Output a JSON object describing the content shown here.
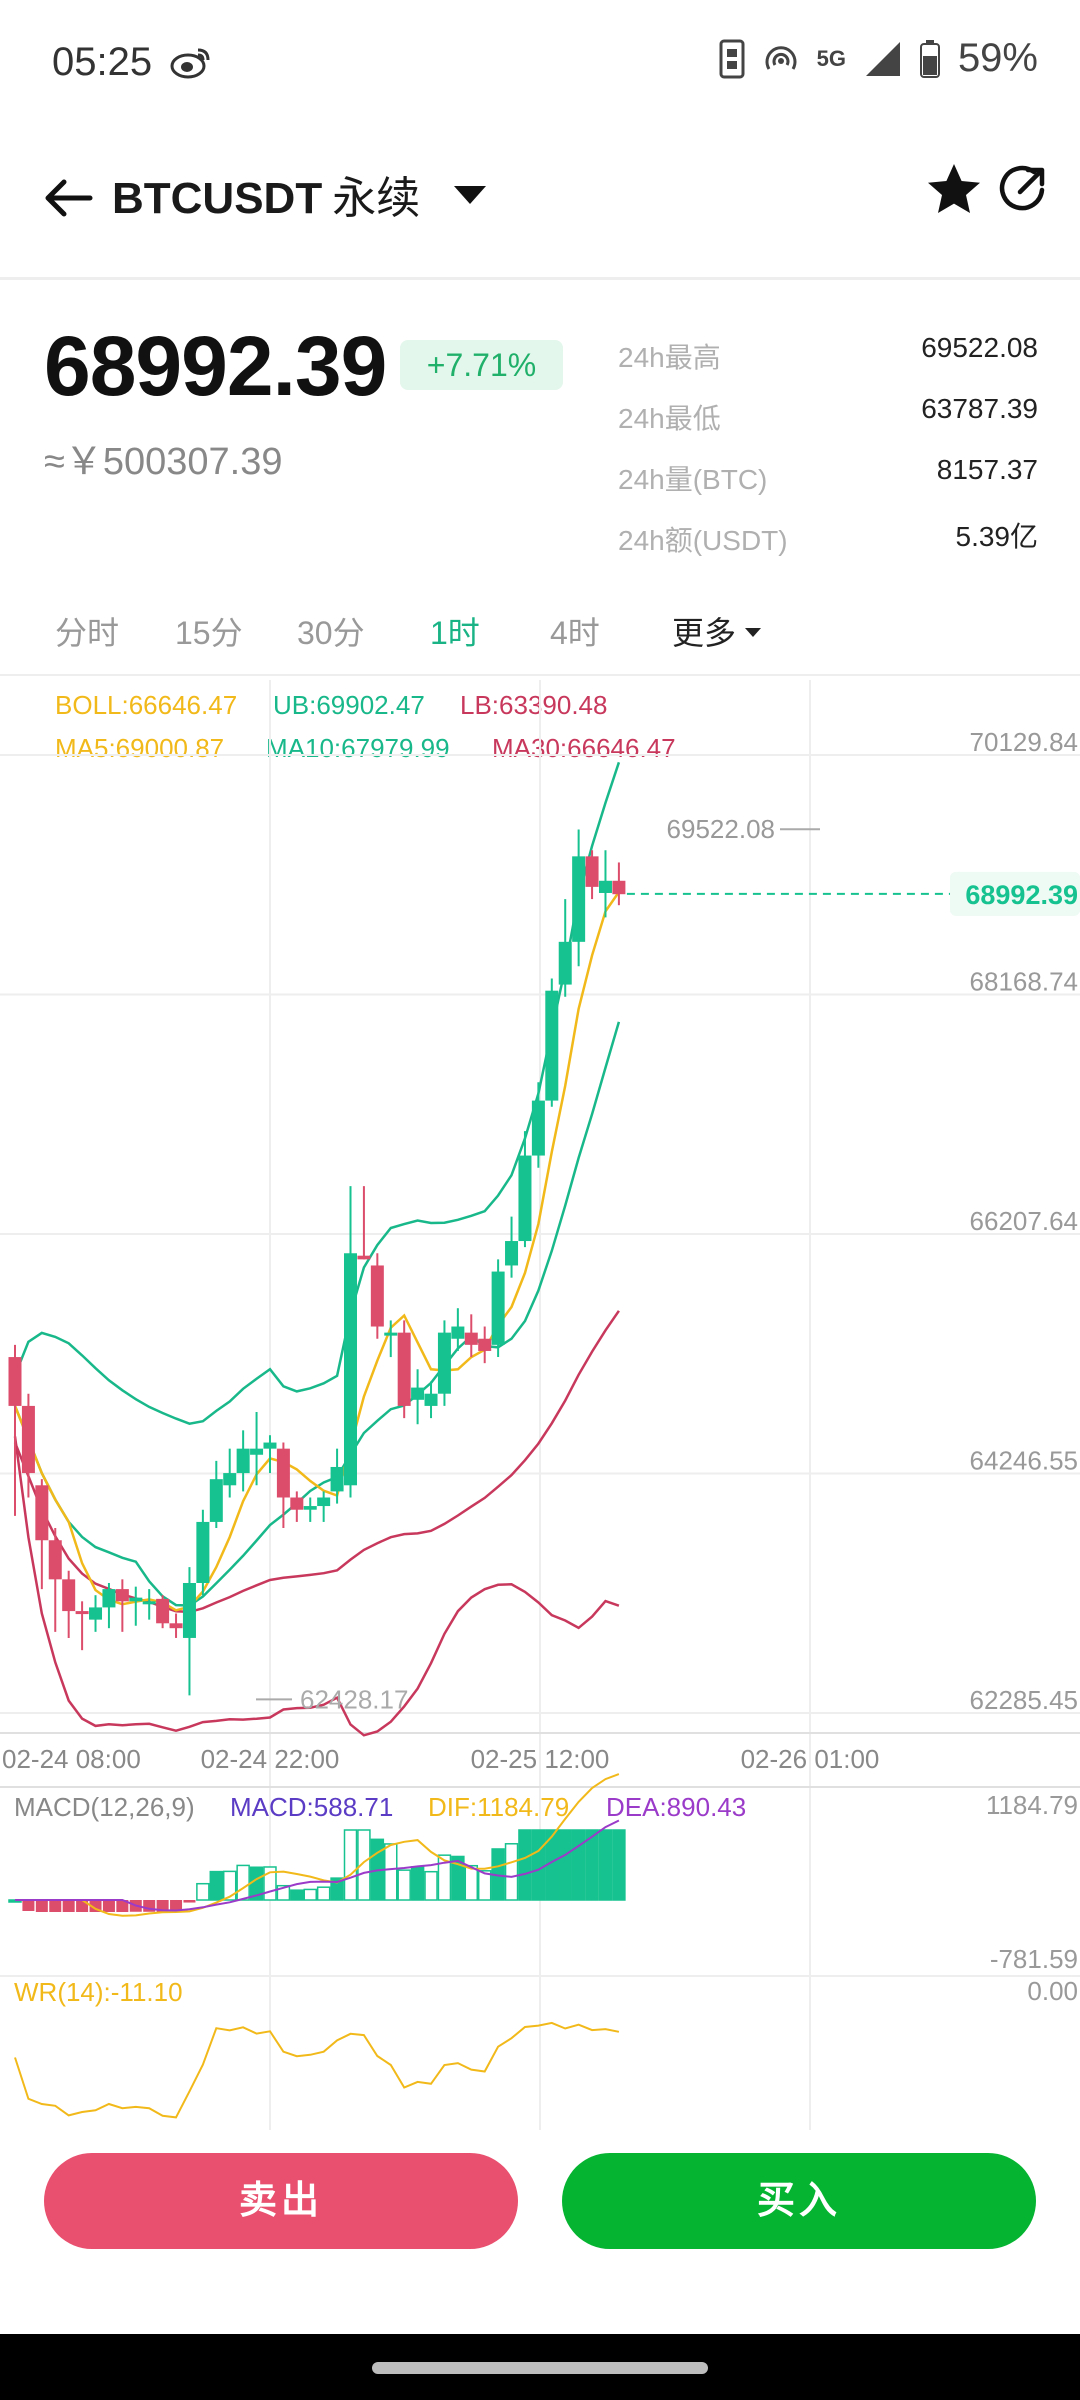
{
  "status_bar": {
    "time": "05:25",
    "network": "5G",
    "battery": "59%"
  },
  "header": {
    "pair": "BTCUSDT",
    "contract_type": "永续"
  },
  "ticker": {
    "last_price": "68992.39",
    "change_pct": "+7.71%",
    "cny_price": "≈￥500307.39",
    "stats": [
      {
        "label": "24h最高",
        "value": "69522.08"
      },
      {
        "label": "24h最低",
        "value": "63787.39"
      },
      {
        "label": "24h量(BTC)",
        "value": "8157.37"
      },
      {
        "label": "24h额(USDT)",
        "value": "5.39亿"
      }
    ]
  },
  "intervals": {
    "tabs": [
      "分时",
      "15分",
      "30分",
      "1时",
      "4时"
    ],
    "active": "1时",
    "more": "更多"
  },
  "indicators": {
    "boll": "BOLL:66646.47",
    "ub": "UB:69902.47",
    "lb": "LB:63390.48",
    "ma5": "MA5:69000.87",
    "ma10": "MA10:67979.99",
    "ma30": "MA30:66646.47",
    "macd_title": "MACD(12,26,9)",
    "macd": "MACD:588.71",
    "dif": "DIF:1184.79",
    "dea": "DEA:890.43",
    "wr": "WR(14):-11.10"
  },
  "chart_labels": {
    "y_ticks": [
      "70129.84",
      "68168.74",
      "66207.64",
      "64246.55",
      "62285.45"
    ],
    "high_marker": "69522.08",
    "low_marker": "62428.17",
    "current": "68992.39",
    "x_ticks": [
      "02-24 08:00",
      "02-24 22:00",
      "02-25 12:00",
      "02-26 01:00"
    ],
    "macd_max": "1184.79",
    "macd_min": "-781.59",
    "wr_max": "0.00"
  },
  "colors": {
    "up": "#16c28f",
    "down": "#dc4d6c",
    "ma5": "#f2b91a",
    "boll_band": "#19b88a",
    "ma30": "#c8385d",
    "dea": "#9b3bc9",
    "macd_title": "#5b3cc4"
  },
  "buttons": {
    "sell": "卖出",
    "buy": "买入"
  },
  "chart_data": {
    "type": "candlestick",
    "y_axis": {
      "min": 62285.45,
      "max": 70129.84
    },
    "candles": [
      {
        "o": 65200,
        "c": 64800,
        "h": 65300,
        "l": 63900
      },
      {
        "o": 64800,
        "c": 64250,
        "h": 64900,
        "l": 64050
      },
      {
        "o": 64150,
        "c": 63700,
        "h": 64200,
        "l": 63300
      },
      {
        "o": 63700,
        "c": 63380,
        "h": 63800,
        "l": 62950
      },
      {
        "o": 63380,
        "c": 63120,
        "h": 63450,
        "l": 62900
      },
      {
        "o": 63120,
        "c": 63110,
        "h": 63200,
        "l": 62800
      },
      {
        "o": 63050,
        "c": 63150,
        "h": 63250,
        "l": 62950
      },
      {
        "o": 63150,
        "c": 63300,
        "h": 63350,
        "l": 62980
      },
      {
        "o": 63300,
        "c": 63200,
        "h": 63380,
        "l": 62950
      },
      {
        "o": 63200,
        "c": 63230,
        "h": 63320,
        "l": 63000
      },
      {
        "o": 63180,
        "c": 63200,
        "h": 63300,
        "l": 63050
      },
      {
        "o": 63220,
        "c": 63020,
        "h": 63250,
        "l": 62980
      },
      {
        "o": 63020,
        "c": 62980,
        "h": 63100,
        "l": 62900
      },
      {
        "o": 62900,
        "c": 63350,
        "h": 63480,
        "l": 62430
      },
      {
        "o": 63350,
        "c": 63850,
        "h": 63950,
        "l": 63250
      },
      {
        "o": 63850,
        "c": 64200,
        "h": 64350,
        "l": 63800
      },
      {
        "o": 64150,
        "c": 64250,
        "h": 64450,
        "l": 64050
      },
      {
        "o": 64250,
        "c": 64450,
        "h": 64600,
        "l": 64100
      },
      {
        "o": 64400,
        "c": 64450,
        "h": 64750,
        "l": 64150
      },
      {
        "o": 64450,
        "c": 64500,
        "h": 64560,
        "l": 64250
      },
      {
        "o": 64450,
        "c": 64050,
        "h": 64500,
        "l": 63800
      },
      {
        "o": 64050,
        "c": 63950,
        "h": 64100,
        "l": 63850
      },
      {
        "o": 63950,
        "c": 63980,
        "h": 64050,
        "l": 63850
      },
      {
        "o": 63980,
        "c": 64050,
        "h": 64100,
        "l": 63850
      },
      {
        "o": 64100,
        "c": 64300,
        "h": 64450,
        "l": 64000
      },
      {
        "o": 64150,
        "c": 66050,
        "h": 66600,
        "l": 64050
      },
      {
        "o": 66030,
        "c": 66000,
        "h": 66600,
        "l": 66000
      },
      {
        "o": 65950,
        "c": 65450,
        "h": 66050,
        "l": 65350
      },
      {
        "o": 65400,
        "c": 65400,
        "h": 65500,
        "l": 65200
      },
      {
        "o": 65400,
        "c": 64800,
        "h": 65500,
        "l": 64700
      },
      {
        "o": 64850,
        "c": 64950,
        "h": 65100,
        "l": 64650
      },
      {
        "o": 64800,
        "c": 64900,
        "h": 65000,
        "l": 64700
      },
      {
        "o": 64900,
        "c": 65400,
        "h": 65500,
        "l": 64800
      },
      {
        "o": 65350,
        "c": 65450,
        "h": 65600,
        "l": 65250
      },
      {
        "o": 65400,
        "c": 65300,
        "h": 65550,
        "l": 65200
      },
      {
        "o": 65350,
        "c": 65250,
        "h": 65450,
        "l": 65150
      },
      {
        "o": 65300,
        "c": 65900,
        "h": 66000,
        "l": 65200
      },
      {
        "o": 65950,
        "c": 66150,
        "h": 66350,
        "l": 65850
      },
      {
        "o": 66150,
        "c": 66850,
        "h": 67050,
        "l": 66100
      },
      {
        "o": 66850,
        "c": 67300,
        "h": 67450,
        "l": 66750
      },
      {
        "o": 67300,
        "c": 68200,
        "h": 68300,
        "l": 67250
      },
      {
        "o": 68250,
        "c": 68600,
        "h": 68950,
        "l": 68150
      },
      {
        "o": 68600,
        "c": 69300,
        "h": 69520,
        "l": 68400
      },
      {
        "o": 69300,
        "c": 69050,
        "h": 69350,
        "l": 68950
      },
      {
        "o": 69000,
        "c": 69100,
        "h": 69350,
        "l": 68800
      },
      {
        "o": 69100,
        "c": 68990,
        "h": 69250,
        "l": 68900
      }
    ]
  }
}
